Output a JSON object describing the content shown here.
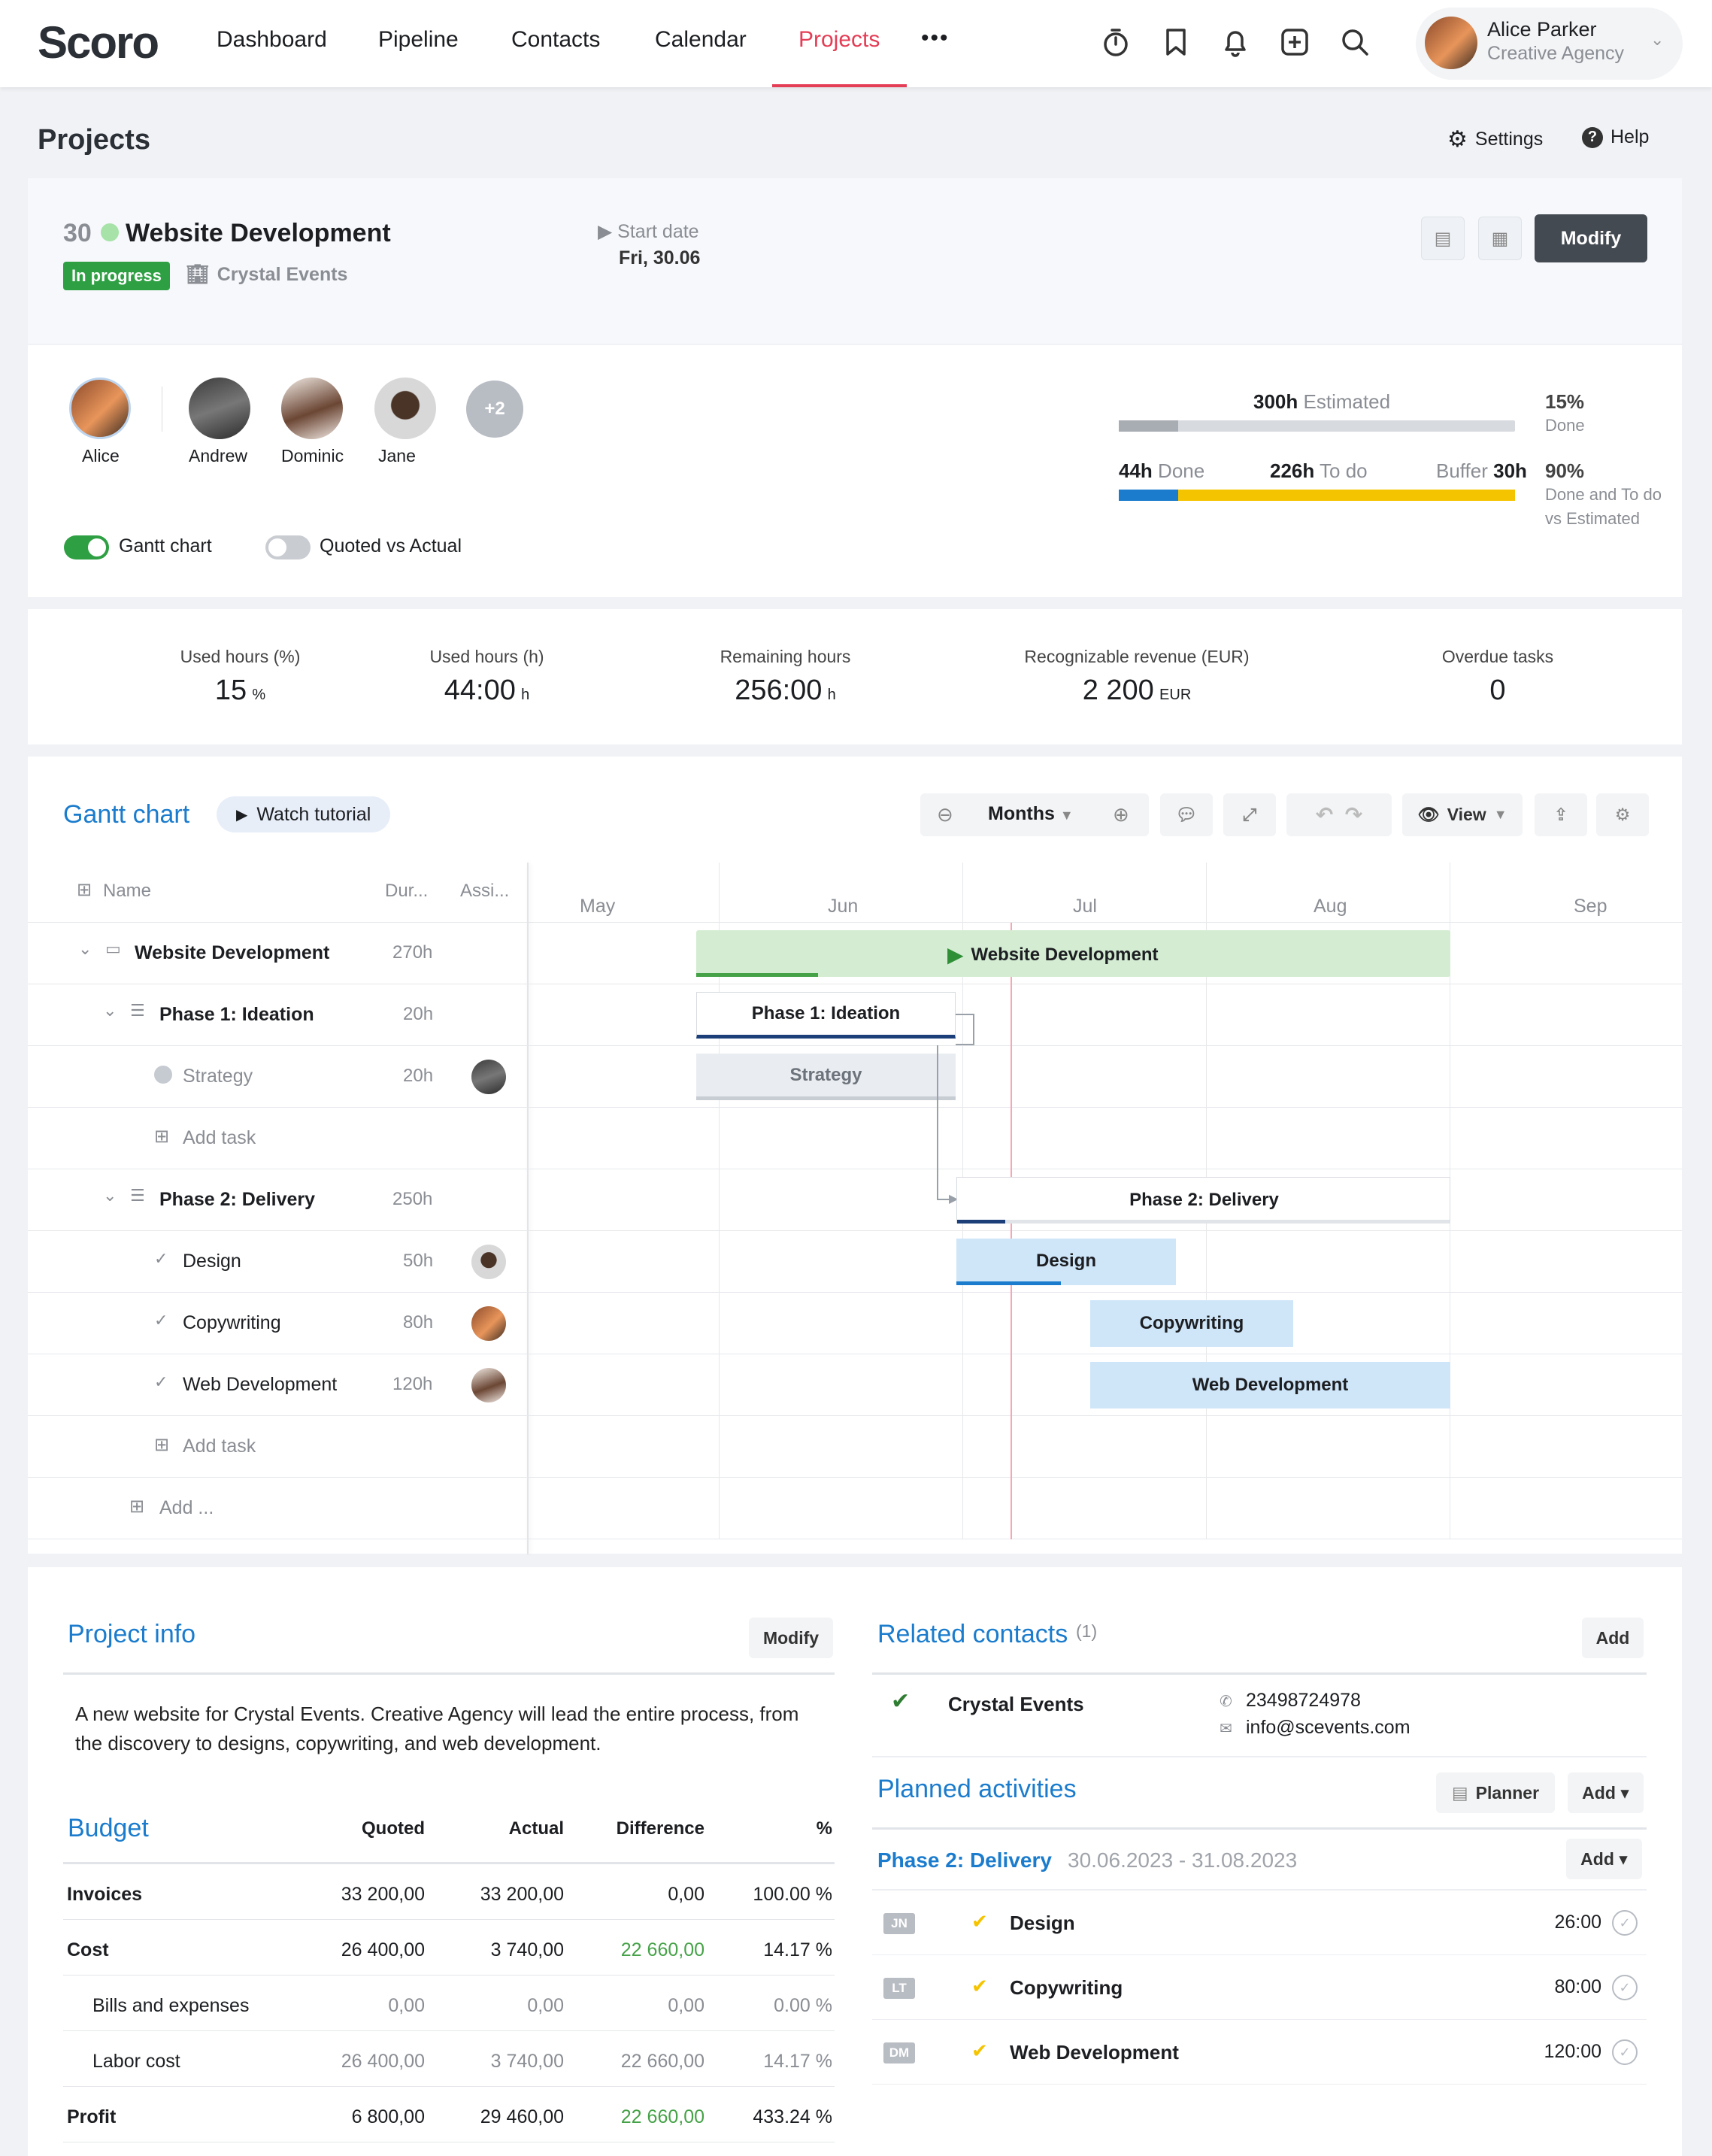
{
  "nav": {
    "logo": "Scoro",
    "items": [
      "Dashboard",
      "Pipeline",
      "Contacts",
      "Calendar",
      "Projects"
    ],
    "active": "Projects",
    "more": "•••",
    "user": {
      "name": "Alice Parker",
      "company": "Creative Agency"
    }
  },
  "page": {
    "title": "Projects",
    "settings": "Settings",
    "help": "Help"
  },
  "project": {
    "number": "30",
    "name": "Website Development",
    "status": "In progress",
    "client": "Crystal Events",
    "start_label": "Start date",
    "start_value": "Fri, 30.06",
    "modify": "Modify"
  },
  "team": {
    "members": [
      "Alice",
      "Andrew",
      "Dominic",
      "Jane"
    ],
    "more": "+2",
    "toggles": {
      "gantt": "Gantt chart",
      "quoted": "Quoted vs Actual"
    }
  },
  "hours": {
    "estimated_val": "300h",
    "estimated_label": "Estimated",
    "done_pct": "15%",
    "done_pct_label": "Done",
    "done_val": "44h",
    "done_label": "Done",
    "todo_val": "226h",
    "todo_label": "To do",
    "buffer_label": "Buffer",
    "buffer_val": "30h",
    "dtd_pct": "90%",
    "dtd_label1": "Done and To do",
    "dtd_label2": "vs Estimated",
    "estimated_done_fraction": 0.15,
    "done_fraction": 0.15,
    "todo_fraction": 0.75
  },
  "stats": [
    {
      "label": "Used hours (%)",
      "value": "15",
      "unit": "%"
    },
    {
      "label": "Used hours (h)",
      "value": "44:00",
      "unit": "h"
    },
    {
      "label": "Remaining hours",
      "value": "256:00",
      "unit": "h"
    },
    {
      "label": "Recognizable revenue (EUR)",
      "value": "2 200",
      "unit": "EUR"
    },
    {
      "label": "Overdue tasks",
      "value": "0",
      "unit": ""
    }
  ],
  "gantt": {
    "title": "Gantt chart",
    "tutorial": "Watch tutorial",
    "scale": "Months",
    "view": "View",
    "columns": {
      "name": "Name",
      "duration": "Dur...",
      "assignee": "Assi..."
    },
    "months": [
      "May",
      "Jun",
      "Jul",
      "Aug",
      "Sep"
    ],
    "rows": [
      {
        "name": "Website Development",
        "duration": "270h"
      },
      {
        "name": "Phase 1: Ideation",
        "duration": "20h"
      },
      {
        "name": "Strategy",
        "duration": "20h"
      },
      {
        "name": "Add task",
        "duration": ""
      },
      {
        "name": "Phase 2: Delivery",
        "duration": "250h"
      },
      {
        "name": "Design",
        "duration": "50h"
      },
      {
        "name": "Copywriting",
        "duration": "80h"
      },
      {
        "name": "Web Development",
        "duration": "120h"
      },
      {
        "name": "Add task",
        "duration": ""
      },
      {
        "name": "Add ...",
        "duration": ""
      }
    ],
    "bars": {
      "website": "Website Development",
      "phase1": "Phase 1: Ideation",
      "strategy": "Strategy",
      "phase2": "Phase 2: Delivery",
      "design": "Design",
      "copy": "Copywriting",
      "webdev": "Web Development"
    }
  },
  "project_info": {
    "title": "Project info",
    "modify": "Modify",
    "description": "A new website for Crystal Events. Creative Agency will lead the entire process, from the discovery to designs, copywriting, and web development."
  },
  "budget": {
    "title": "Budget",
    "headers": [
      "Quoted",
      "Actual",
      "Difference",
      "%"
    ],
    "rows": [
      {
        "label": "Invoices",
        "quoted": "33 200,00",
        "actual": "33 200,00",
        "diff": "0,00",
        "pct": "100.00 %"
      },
      {
        "label": "Cost",
        "quoted": "26 400,00",
        "actual": "3 740,00",
        "diff": "22 660,00",
        "pct": "14.17 %"
      },
      {
        "label": "Bills and expenses",
        "quoted": "0,00",
        "actual": "0,00",
        "diff": "0,00",
        "pct": "0.00 %"
      },
      {
        "label": "Labor cost",
        "quoted": "26 400,00",
        "actual": "3 740,00",
        "diff": "22 660,00",
        "pct": "14.17 %"
      },
      {
        "label": "Profit",
        "quoted": "6 800,00",
        "actual": "29 460,00",
        "diff": "22 660,00",
        "pct": "433.24 %"
      }
    ]
  },
  "contacts": {
    "title": "Related contacts",
    "count": "(1)",
    "add": "Add",
    "name": "Crystal Events",
    "phone": "23498724978",
    "email": "info@scevents.com"
  },
  "activities": {
    "title": "Planned activities",
    "planner": "Planner",
    "add": "Add ▾",
    "phase": "Phase 2: Delivery",
    "dates": "30.06.2023 - 31.08.2023",
    "phase_add": "Add ▾",
    "items": [
      {
        "initials": "JN",
        "name": "Design",
        "time": "26:00"
      },
      {
        "initials": "LT",
        "name": "Copywriting",
        "time": "80:00"
      },
      {
        "initials": "DM",
        "name": "Web Development",
        "time": "120:00"
      }
    ]
  },
  "colors": {
    "accent": "#e43d56",
    "blue": "#1b7ccd",
    "green": "#45a247",
    "yellow": "#f5c400"
  }
}
